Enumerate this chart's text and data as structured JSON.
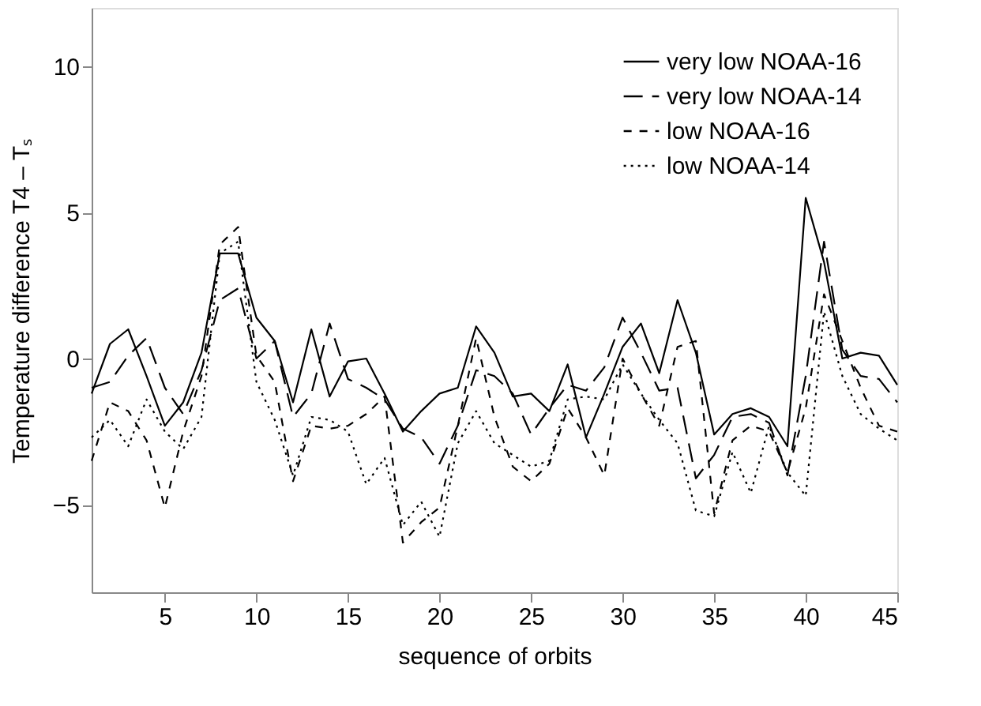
{
  "chart_data": {
    "type": "line",
    "xlabel": "sequence of orbits",
    "ylabel": "Temperature difference T4 – Tₛ",
    "x": [
      1,
      2,
      3,
      4,
      5,
      6,
      7,
      8,
      9,
      10,
      11,
      12,
      13,
      14,
      15,
      16,
      17,
      18,
      19,
      20,
      21,
      22,
      23,
      24,
      25,
      26,
      27,
      28,
      29,
      30,
      31,
      32,
      33,
      34,
      35,
      36,
      37,
      38,
      39,
      40,
      41,
      42,
      43,
      44,
      45
    ],
    "xlim": [
      1,
      45
    ],
    "xticks": [
      5,
      10,
      15,
      20,
      25,
      30,
      35,
      40,
      45
    ],
    "ylim": [
      -8,
      12
    ],
    "yticks": [
      -5,
      0,
      5,
      10
    ],
    "grid": false,
    "legend": "top right",
    "marker": "none",
    "series": [
      {
        "name": "very low NOAA-16",
        "color": "#000000",
        "line_style": "solid",
        "values": [
          -1.2,
          0.5,
          1.0,
          -0.6,
          -2.3,
          -1.5,
          0.2,
          3.6,
          3.6,
          1.4,
          0.6,
          -1.5,
          1.0,
          -1.3,
          -0.1,
          0.0,
          -1.2,
          -2.5,
          -1.8,
          -1.2,
          -1.0,
          1.1,
          0.2,
          -1.3,
          -1.2,
          -1.8,
          -0.2,
          -2.7,
          -1.2,
          0.4,
          1.2,
          -0.5,
          2.0,
          0.2,
          -2.6,
          -1.9,
          -1.7,
          -2.0,
          -3.0,
          5.5,
          3.3,
          0.0,
          0.2,
          0.1,
          -0.9
        ]
      },
      {
        "name": "very low NOAA-14",
        "color": "#000000",
        "line_style": "dashed",
        "values": [
          -1.0,
          -0.8,
          0.1,
          0.7,
          -1.0,
          -1.9,
          -0.4,
          2.0,
          2.4,
          0.0,
          0.6,
          -2.0,
          -1.2,
          1.2,
          -0.7,
          -1.0,
          -1.4,
          -2.4,
          -2.7,
          -3.6,
          -2.3,
          -0.4,
          -0.6,
          -1.2,
          -2.6,
          -1.7,
          -0.9,
          -1.1,
          -0.3,
          1.4,
          0.2,
          -1.1,
          -1.0,
          -4.1,
          -3.3,
          -2.0,
          -1.9,
          -2.2,
          -4.0,
          -0.6,
          4.0,
          0.3,
          -0.6,
          -0.7,
          -1.5
        ]
      },
      {
        "name": "low NOAA-16",
        "color": "#000000",
        "line_style": "dashed",
        "values": [
          -3.5,
          -1.5,
          -1.8,
          -2.8,
          -5.1,
          -2.5,
          -0.6,
          3.9,
          4.5,
          0.1,
          -0.8,
          -4.2,
          -2.3,
          -2.4,
          -2.3,
          -1.9,
          -1.3,
          -6.3,
          -5.6,
          -5.1,
          -2.3,
          0.7,
          -2.0,
          -3.7,
          -4.2,
          -3.6,
          -1.7,
          -2.7,
          -4.0,
          0.0,
          -1.2,
          -2.3,
          0.4,
          0.6,
          -5.3,
          -2.8,
          -2.3,
          -2.5,
          -3.9,
          -1.7,
          2.2,
          0.6,
          -1.0,
          -2.3,
          -2.5
        ]
      },
      {
        "name": "low NOAA-14",
        "color": "#000000",
        "line_style": "dotted",
        "values": [
          -2.7,
          -2.1,
          -3.0,
          -1.4,
          -2.5,
          -3.1,
          -2.0,
          3.6,
          4.0,
          -0.8,
          -2.1,
          -4.0,
          -2.0,
          -2.1,
          -2.5,
          -4.3,
          -3.4,
          -5.7,
          -4.9,
          -6.1,
          -2.9,
          -1.8,
          -2.9,
          -3.3,
          -3.7,
          -3.5,
          -1.4,
          -1.3,
          -1.4,
          -0.2,
          -1.2,
          -2.1,
          -2.9,
          -5.2,
          -5.4,
          -3.2,
          -4.6,
          -2.3,
          -3.9,
          -4.7,
          1.6,
          -0.6,
          -1.9,
          -2.4,
          -2.8
        ]
      }
    ]
  }
}
